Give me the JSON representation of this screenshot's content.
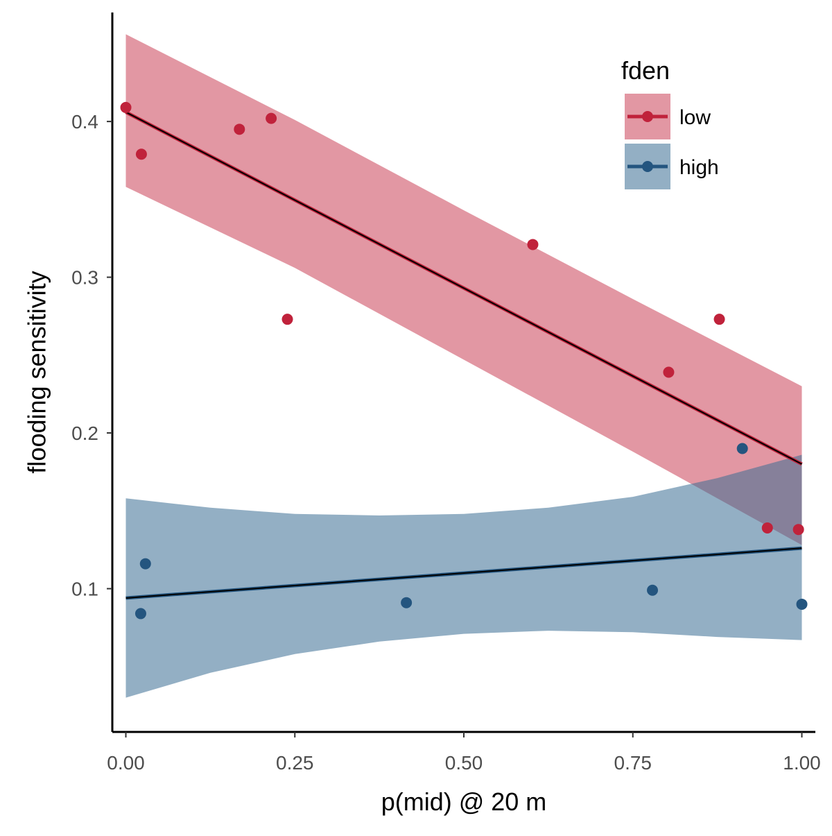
{
  "chart_data": {
    "type": "scatter",
    "xlabel": "p(mid) @ 20 m",
    "ylabel": "flooding sensitivity",
    "xlim": [
      -0.02,
      1.02
    ],
    "ylim": [
      0.008,
      0.47
    ],
    "x_ticks": [
      0.0,
      0.25,
      0.5,
      0.75,
      1.0
    ],
    "x_tick_labels": [
      "0.00",
      "0.25",
      "0.50",
      "0.75",
      "1.00"
    ],
    "y_ticks": [
      0.1,
      0.2,
      0.3,
      0.4
    ],
    "y_tick_labels": [
      "0.1",
      "0.2",
      "0.3",
      "0.4"
    ],
    "grid": false,
    "legend": {
      "title": "fden",
      "position": "top-right",
      "entries": [
        "low",
        "high"
      ]
    },
    "series": [
      {
        "name": "low",
        "color": "#c0223b",
        "fill_color": "#cb4157",
        "x": [
          0.0,
          0.023,
          0.168,
          0.215,
          0.239,
          0.602,
          0.803,
          0.878,
          0.949,
          0.995
        ],
        "y": [
          0.409,
          0.379,
          0.395,
          0.402,
          0.273,
          0.321,
          0.239,
          0.273,
          0.139,
          0.138
        ],
        "fit": {
          "x": [
            0.0,
            1.0
          ],
          "y": [
            0.406,
            0.18
          ]
        },
        "ribbon": {
          "x": [
            0.0,
            0.25,
            0.5,
            0.75,
            1.0
          ],
          "lower": [
            0.358,
            0.306,
            0.247,
            0.188,
            0.128
          ],
          "upper": [
            0.456,
            0.401,
            0.343,
            0.286,
            0.23
          ]
        }
      },
      {
        "name": "high",
        "color": "#24557f",
        "fill_color": "#3a6d93",
        "x": [
          0.022,
          0.029,
          0.415,
          0.779,
          0.912,
          1.0
        ],
        "y": [
          0.084,
          0.116,
          0.091,
          0.099,
          0.19,
          0.09
        ],
        "fit": {
          "x": [
            0.0,
            1.0
          ],
          "y": [
            0.094,
            0.126
          ]
        },
        "ribbon": {
          "x": [
            0.0,
            0.125,
            0.25,
            0.375,
            0.5,
            0.625,
            0.75,
            0.875,
            1.0
          ],
          "lower": [
            0.03,
            0.046,
            0.058,
            0.066,
            0.071,
            0.073,
            0.072,
            0.069,
            0.067
          ],
          "upper": [
            0.158,
            0.152,
            0.148,
            0.147,
            0.148,
            0.152,
            0.159,
            0.171,
            0.186
          ]
        }
      }
    ]
  }
}
